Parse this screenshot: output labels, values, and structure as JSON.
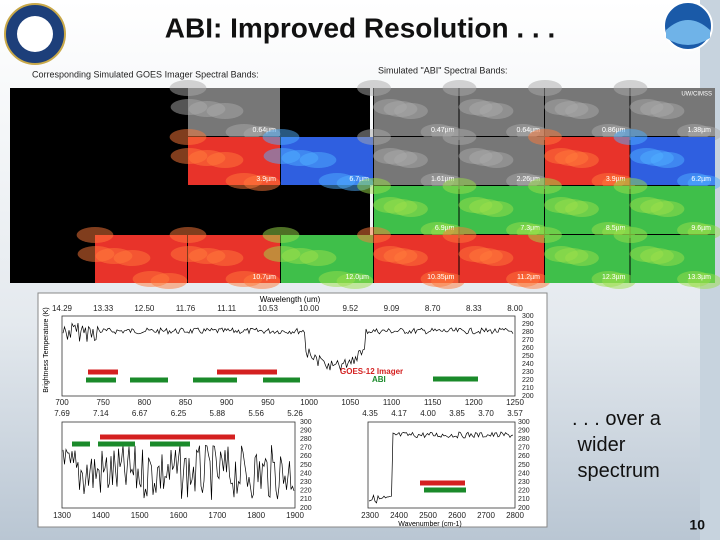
{
  "header": {
    "title": "ABI: Improved Resolution . . ."
  },
  "left_panel": {
    "caption": "Corresponding Simulated GOES Imager Spectral Bands:",
    "bands": [
      "0.64µm",
      "3.9µm",
      "6.7µm",
      "10.7µm",
      "12.0µm"
    ]
  },
  "right_panel": {
    "caption": "Simulated \"ABI\" Spectral Bands:",
    "credit": "UW/CIMSS",
    "bands": [
      "0.47µm",
      "0.64µm",
      "0.86µm",
      "1.38µm",
      "1.61µm",
      "2.26µm",
      "3.9µm",
      "6.2µm",
      "6.9µm",
      "7.3µm",
      "8.5µm",
      "9.6µm",
      "10.35µm",
      "11.2µm",
      "12.3µm",
      "13.3µm"
    ]
  },
  "spectrum": {
    "top_axis_title": "Wavelength (um)",
    "bottom_axis_title": "Wavenumber (cm-1)",
    "y_axis_title": "Brightness Temperature (K)",
    "legend": [
      "GOES-12 Imager",
      "ABI"
    ],
    "top_wavelengths": [
      "14.29",
      "13.33",
      "12.50",
      "11.76",
      "11.11",
      "10.53",
      "10.00",
      "9.52",
      "9.09",
      "8.70",
      "8.33",
      "8.00"
    ],
    "top_wavenumbers": [
      "700",
      "750",
      "800",
      "850",
      "900",
      "950",
      "1000",
      "1050",
      "1100",
      "1150",
      "1200",
      "1250"
    ],
    "mid_wavelengths_left": [
      "7.69",
      "7.14",
      "6.67",
      "6.25",
      "5.88",
      "5.56",
      "5.26"
    ],
    "mid_wavelengths_right": [
      "4.35",
      "4.17",
      "4.00",
      "3.85",
      "3.70",
      "3.57"
    ],
    "bottom_wavenumbers_left": [
      "1300",
      "1400",
      "1500",
      "1600",
      "1700",
      "1800",
      "1900"
    ],
    "bottom_wavenumbers_right": [
      "2300",
      "2400",
      "2500",
      "2600",
      "2700",
      "2800"
    ],
    "y_ticks": [
      "300",
      "290",
      "280",
      "270",
      "260",
      "250",
      "240",
      "230",
      "220",
      "210",
      "200"
    ]
  },
  "side_text": ". . . over a wider spectrum",
  "page_number": "10"
}
